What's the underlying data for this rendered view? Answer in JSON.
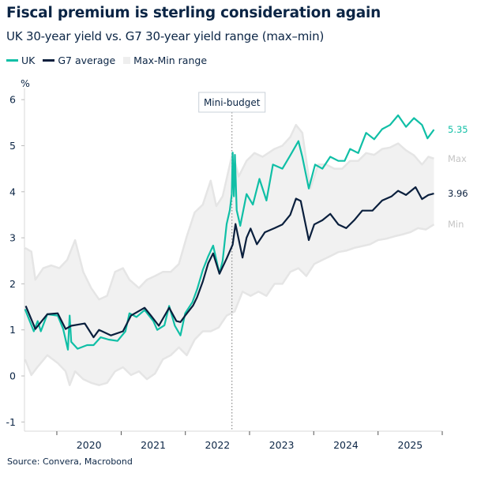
{
  "title": "Fiscal premium is sterling consideration again",
  "subtitle": "UK 30-year yield vs. G7 30-year yield range (max–min)",
  "source": "Source: Convera, Macrobond",
  "colors": {
    "uk": "#10bfa6",
    "g7": "#0a1f3d",
    "range_fill": "#f1f1f1",
    "range_edge": "#e5e5e5",
    "end_label_grey": "#c4c4c4",
    "text": "#0b2545"
  },
  "legend": [
    {
      "label": "UK",
      "kind": "line",
      "color": "#10bfa6"
    },
    {
      "label": "G7 average",
      "kind": "line",
      "color": "#0a1f3d"
    },
    {
      "label": "Max-Min range",
      "kind": "box",
      "color": "#eeeeee"
    }
  ],
  "chart_data": {
    "type": "line",
    "title": "Fiscal premium is sterling consideration again",
    "subtitle": "UK 30-year yield vs. G7 30-year yield range (max–min)",
    "ylabel": "%",
    "xlabel": "",
    "xlim": [
      "2019-07-01",
      "2026-01-01"
    ],
    "ylim": [
      -1.2,
      6.25
    ],
    "y_ticks": [
      -1,
      0,
      1,
      2,
      3,
      4,
      5,
      6
    ],
    "x_ticks": [
      "2020",
      "2021",
      "2022",
      "2023",
      "2024",
      "2025"
    ],
    "grid": false,
    "legend_position": "top-left",
    "annotation": {
      "label": "Mini-budget",
      "date": "2022-09-23",
      "style": "dotted vertical line"
    },
    "end_labels": {
      "uk": "5.35",
      "max": "Max",
      "g7": "3.96",
      "min": "Min"
    },
    "series": [
      {
        "name": "UK",
        "key": "uk",
        "points": [
          [
            "2019-07-04",
            1.45
          ],
          [
            "2019-08-23",
            0.97
          ],
          [
            "2019-09-14",
            1.19
          ],
          [
            "2019-10-02",
            0.97
          ],
          [
            "2019-11-08",
            1.34
          ],
          [
            "2020-01-06",
            1.31
          ],
          [
            "2020-02-06",
            1.02
          ],
          [
            "2020-03-04",
            0.57
          ],
          [
            "2020-03-14",
            1.31
          ],
          [
            "2020-03-23",
            0.74
          ],
          [
            "2020-04-28",
            0.59
          ],
          [
            "2020-06-21",
            0.67
          ],
          [
            "2020-07-28",
            0.67
          ],
          [
            "2020-09-06",
            0.84
          ],
          [
            "2020-10-22",
            0.79
          ],
          [
            "2020-12-11",
            0.76
          ],
          [
            "2021-01-25",
            0.97
          ],
          [
            "2021-02-17",
            1.36
          ],
          [
            "2021-03-29",
            1.28
          ],
          [
            "2021-05-14",
            1.43
          ],
          [
            "2021-07-03",
            1.19
          ],
          [
            "2021-07-25",
            1.0
          ],
          [
            "2021-09-04",
            1.1
          ],
          [
            "2021-10-01",
            1.52
          ],
          [
            "2021-11-02",
            1.09
          ],
          [
            "2021-12-04",
            0.88
          ],
          [
            "2021-12-31",
            1.36
          ],
          [
            "2022-02-10",
            1.6
          ],
          [
            "2022-03-09",
            1.88
          ],
          [
            "2022-04-10",
            2.3
          ],
          [
            "2022-05-11",
            2.6
          ],
          [
            "2022-06-08",
            2.83
          ],
          [
            "2022-07-14",
            2.22
          ],
          [
            "2022-08-01",
            2.5
          ],
          [
            "2022-08-24",
            3.3
          ],
          [
            "2022-09-11",
            3.6
          ],
          [
            "2022-09-22",
            3.95
          ],
          [
            "2022-09-27",
            4.85
          ],
          [
            "2022-10-04",
            3.9
          ],
          [
            "2022-10-10",
            4.8
          ],
          [
            "2022-10-20",
            3.6
          ],
          [
            "2022-11-09",
            3.26
          ],
          [
            "2022-12-15",
            3.95
          ],
          [
            "2023-01-20",
            3.72
          ],
          [
            "2023-02-26",
            4.28
          ],
          [
            "2023-04-07",
            3.81
          ],
          [
            "2023-05-14",
            4.59
          ],
          [
            "2023-07-07",
            4.5
          ],
          [
            "2023-08-21",
            4.79
          ],
          [
            "2023-10-06",
            5.1
          ],
          [
            "2023-10-28",
            4.76
          ],
          [
            "2023-12-04",
            4.07
          ],
          [
            "2024-01-09",
            4.59
          ],
          [
            "2024-02-19",
            4.5
          ],
          [
            "2024-04-04",
            4.76
          ],
          [
            "2024-05-20",
            4.67
          ],
          [
            "2024-06-25",
            4.67
          ],
          [
            "2024-07-26",
            4.93
          ],
          [
            "2024-09-10",
            4.84
          ],
          [
            "2024-10-25",
            5.28
          ],
          [
            "2024-12-10",
            5.14
          ],
          [
            "2025-01-24",
            5.36
          ],
          [
            "2025-03-10",
            5.45
          ],
          [
            "2025-04-25",
            5.66
          ],
          [
            "2025-06-09",
            5.41
          ],
          [
            "2025-07-24",
            5.6
          ],
          [
            "2025-09-08",
            5.45
          ],
          [
            "2025-10-09",
            5.16
          ],
          [
            "2025-11-15",
            5.35
          ]
        ]
      },
      {
        "name": "G7 average",
        "key": "g7",
        "points": [
          [
            "2019-07-08",
            1.52
          ],
          [
            "2019-09-01",
            1.02
          ],
          [
            "2019-11-08",
            1.34
          ],
          [
            "2020-01-06",
            1.36
          ],
          [
            "2020-02-20",
            1.02
          ],
          [
            "2020-03-23",
            1.09
          ],
          [
            "2020-06-08",
            1.14
          ],
          [
            "2020-07-28",
            0.84
          ],
          [
            "2020-08-28",
            1.0
          ],
          [
            "2020-11-04",
            0.88
          ],
          [
            "2021-01-11",
            0.97
          ],
          [
            "2021-02-26",
            1.31
          ],
          [
            "2021-05-14",
            1.48
          ],
          [
            "2021-06-19",
            1.31
          ],
          [
            "2021-08-03",
            1.09
          ],
          [
            "2021-10-01",
            1.48
          ],
          [
            "2021-11-11",
            1.19
          ],
          [
            "2021-12-04",
            1.17
          ],
          [
            "2021-12-31",
            1.31
          ],
          [
            "2022-02-14",
            1.53
          ],
          [
            "2022-03-09",
            1.71
          ],
          [
            "2022-04-10",
            2.05
          ],
          [
            "2022-05-11",
            2.45
          ],
          [
            "2022-06-08",
            2.66
          ],
          [
            "2022-07-14",
            2.22
          ],
          [
            "2022-08-24",
            2.55
          ],
          [
            "2022-09-27",
            2.85
          ],
          [
            "2022-10-13",
            3.3
          ],
          [
            "2022-11-22",
            2.57
          ],
          [
            "2022-12-15",
            3.0
          ],
          [
            "2023-01-07",
            3.2
          ],
          [
            "2023-02-12",
            2.86
          ],
          [
            "2023-03-29",
            3.12
          ],
          [
            "2023-05-23",
            3.21
          ],
          [
            "2023-07-07",
            3.29
          ],
          [
            "2023-08-21",
            3.5
          ],
          [
            "2023-09-22",
            3.85
          ],
          [
            "2023-10-19",
            3.8
          ],
          [
            "2023-12-04",
            2.95
          ],
          [
            "2024-01-04",
            3.29
          ],
          [
            "2024-02-19",
            3.38
          ],
          [
            "2024-04-04",
            3.52
          ],
          [
            "2024-05-20",
            3.29
          ],
          [
            "2024-07-04",
            3.21
          ],
          [
            "2024-08-18",
            3.38
          ],
          [
            "2024-10-03",
            3.59
          ],
          [
            "2024-11-30",
            3.59
          ],
          [
            "2025-01-24",
            3.81
          ],
          [
            "2025-03-19",
            3.9
          ],
          [
            "2025-04-25",
            4.02
          ],
          [
            "2025-06-09",
            3.93
          ],
          [
            "2025-08-02",
            4.1
          ],
          [
            "2025-09-08",
            3.84
          ],
          [
            "2025-10-14",
            3.93
          ],
          [
            "2025-11-15",
            3.96
          ]
        ]
      },
      {
        "name": "Max",
        "key": "max",
        "points": [
          [
            "2019-07-04",
            2.78
          ],
          [
            "2019-08-09",
            2.7
          ],
          [
            "2019-09-01",
            2.09
          ],
          [
            "2019-10-16",
            2.34
          ],
          [
            "2019-11-30",
            2.4
          ],
          [
            "2020-01-15",
            2.34
          ],
          [
            "2020-02-29",
            2.52
          ],
          [
            "2020-04-14",
            2.95
          ],
          [
            "2020-05-30",
            2.26
          ],
          [
            "2020-07-14",
            1.91
          ],
          [
            "2020-08-28",
            1.66
          ],
          [
            "2020-10-13",
            1.74
          ],
          [
            "2020-11-27",
            2.26
          ],
          [
            "2021-01-11",
            2.34
          ],
          [
            "2021-02-17",
            2.09
          ],
          [
            "2021-04-12",
            1.91
          ],
          [
            "2021-05-27",
            2.09
          ],
          [
            "2021-07-12",
            2.17
          ],
          [
            "2021-08-26",
            2.26
          ],
          [
            "2021-10-10",
            2.26
          ],
          [
            "2021-11-25",
            2.43
          ],
          [
            "2022-01-09",
            3.03
          ],
          [
            "2022-02-23",
            3.55
          ],
          [
            "2022-04-10",
            3.72
          ],
          [
            "2022-05-25",
            4.24
          ],
          [
            "2022-06-26",
            3.69
          ],
          [
            "2022-08-01",
            3.9
          ],
          [
            "2022-09-27",
            4.85
          ],
          [
            "2022-10-31",
            4.33
          ],
          [
            "2022-12-15",
            4.67
          ],
          [
            "2023-01-29",
            4.84
          ],
          [
            "2023-03-16",
            4.76
          ],
          [
            "2023-05-23",
            4.93
          ],
          [
            "2023-07-07",
            5.0
          ],
          [
            "2023-08-21",
            5.19
          ],
          [
            "2023-09-22",
            5.45
          ],
          [
            "2023-10-28",
            5.28
          ],
          [
            "2023-12-13",
            4.07
          ],
          [
            "2024-01-27",
            4.59
          ],
          [
            "2024-03-12",
            4.59
          ],
          [
            "2024-04-27",
            4.5
          ],
          [
            "2024-06-11",
            4.5
          ],
          [
            "2024-07-26",
            4.67
          ],
          [
            "2024-09-10",
            4.67
          ],
          [
            "2024-10-25",
            4.84
          ],
          [
            "2024-12-10",
            4.8
          ],
          [
            "2025-01-24",
            4.93
          ],
          [
            "2025-03-10",
            4.96
          ],
          [
            "2025-04-25",
            5.05
          ],
          [
            "2025-06-09",
            4.9
          ],
          [
            "2025-07-24",
            4.79
          ],
          [
            "2025-09-08",
            4.59
          ],
          [
            "2025-10-14",
            4.76
          ],
          [
            "2025-11-15",
            4.72
          ]
        ]
      },
      {
        "name": "Min",
        "key": "min",
        "points": [
          [
            "2019-07-04",
            0.36
          ],
          [
            "2019-08-09",
            0.02
          ],
          [
            "2019-09-14",
            0.2
          ],
          [
            "2019-11-08",
            0.45
          ],
          [
            "2020-01-06",
            0.28
          ],
          [
            "2020-02-20",
            0.1
          ],
          [
            "2020-03-14",
            -0.2
          ],
          [
            "2020-04-14",
            0.1
          ],
          [
            "2020-05-30",
            -0.07
          ],
          [
            "2020-07-14",
            -0.15
          ],
          [
            "2020-08-28",
            -0.2
          ],
          [
            "2020-10-13",
            -0.15
          ],
          [
            "2020-11-27",
            0.1
          ],
          [
            "2021-01-11",
            0.19
          ],
          [
            "2021-02-26",
            0.02
          ],
          [
            "2021-04-12",
            0.1
          ],
          [
            "2021-05-27",
            -0.07
          ],
          [
            "2021-07-12",
            0.05
          ],
          [
            "2021-08-26",
            0.36
          ],
          [
            "2021-10-10",
            0.45
          ],
          [
            "2021-11-25",
            0.62
          ],
          [
            "2022-01-09",
            0.45
          ],
          [
            "2022-02-23",
            0.79
          ],
          [
            "2022-04-10",
            0.97
          ],
          [
            "2022-05-25",
            0.97
          ],
          [
            "2022-07-09",
            1.05
          ],
          [
            "2022-08-24",
            1.31
          ],
          [
            "2022-10-08",
            1.4
          ],
          [
            "2022-11-22",
            1.83
          ],
          [
            "2023-01-07",
            1.74
          ],
          [
            "2023-02-21",
            1.83
          ],
          [
            "2023-04-07",
            1.74
          ],
          [
            "2023-05-23",
            2.0
          ],
          [
            "2023-07-07",
            2.0
          ],
          [
            "2023-08-21",
            2.26
          ],
          [
            "2023-10-06",
            2.34
          ],
          [
            "2023-11-20",
            2.17
          ],
          [
            "2024-01-04",
            2.43
          ],
          [
            "2024-02-19",
            2.52
          ],
          [
            "2024-04-04",
            2.6
          ],
          [
            "2024-05-20",
            2.69
          ],
          [
            "2024-07-04",
            2.72
          ],
          [
            "2024-08-18",
            2.78
          ],
          [
            "2024-10-03",
            2.82
          ],
          [
            "2024-11-17",
            2.86
          ],
          [
            "2025-01-01",
            2.95
          ],
          [
            "2025-02-16",
            2.98
          ],
          [
            "2025-04-02",
            3.03
          ],
          [
            "2025-05-17",
            3.07
          ],
          [
            "2025-07-02",
            3.12
          ],
          [
            "2025-08-16",
            3.21
          ],
          [
            "2025-09-30",
            3.18
          ],
          [
            "2025-11-15",
            3.29
          ]
        ]
      }
    ]
  }
}
